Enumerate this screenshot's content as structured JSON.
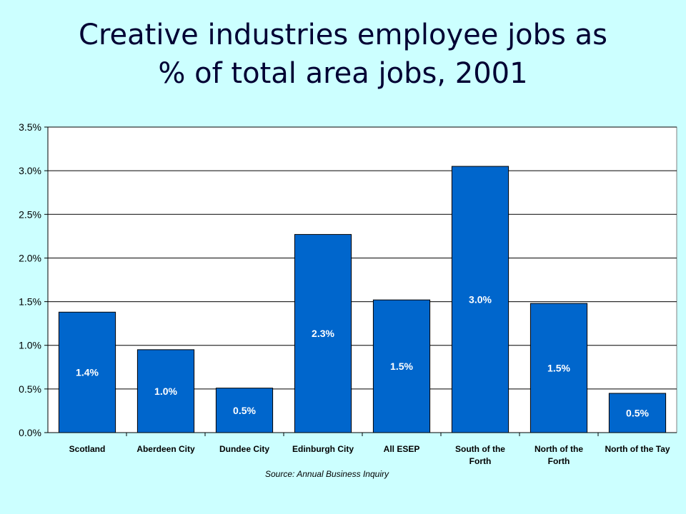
{
  "title_lines": [
    "Creative industries employee jobs as",
    "% of total area jobs, 2001"
  ],
  "source": "Source: Annual Business Inquiry",
  "colors": {
    "background": "#ccffff",
    "plot_area": "#ffffff",
    "bar_fill": "#0066cc",
    "data_label": "#ffffff"
  },
  "chart_data": {
    "type": "bar",
    "categories": [
      [
        "Scotland"
      ],
      [
        "Aberdeen City"
      ],
      [
        "Dundee City"
      ],
      [
        "Edinburgh City"
      ],
      [
        "All ESEP"
      ],
      [
        "South of the",
        "Forth"
      ],
      [
        "North of the",
        "Forth"
      ],
      [
        "North of the Tay"
      ]
    ],
    "values": [
      1.38,
      0.95,
      0.51,
      2.27,
      1.52,
      3.05,
      1.48,
      0.45
    ],
    "data_labels": [
      "1.4%",
      "1.0%",
      "0.5%",
      "2.3%",
      "1.5%",
      "3.0%",
      "1.5%",
      "0.5%"
    ],
    "ylim": [
      0,
      3.5
    ],
    "yticks": [
      {
        "value": 0.0,
        "label": "0.0%"
      },
      {
        "value": 0.5,
        "label": "0.5%"
      },
      {
        "value": 1.0,
        "label": "1.0%"
      },
      {
        "value": 1.5,
        "label": "1.5%"
      },
      {
        "value": 2.0,
        "label": "2.0%"
      },
      {
        "value": 2.5,
        "label": "2.5%"
      },
      {
        "value": 3.0,
        "label": "3.0%"
      },
      {
        "value": 3.5,
        "label": "3.5%"
      }
    ],
    "grid": true,
    "legend": "none"
  }
}
